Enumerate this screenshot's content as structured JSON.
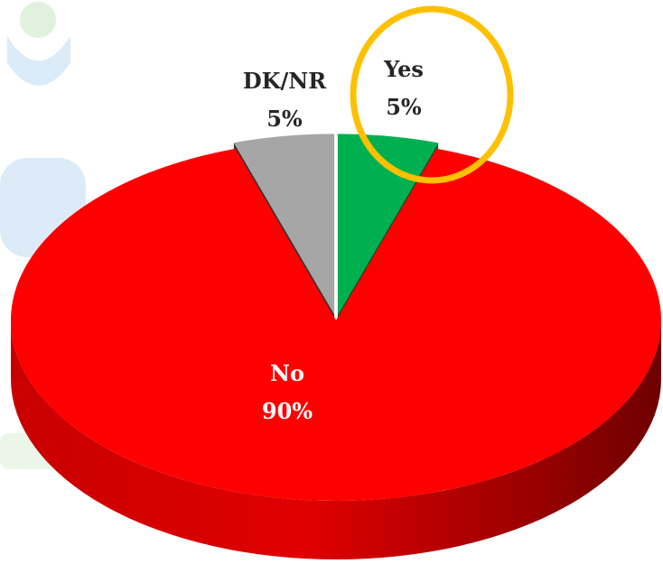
{
  "chart_data": {
    "type": "pie",
    "title": "",
    "slices": [
      {
        "label": "Yes",
        "value": 5,
        "display": "5%",
        "color": "#00b050",
        "highlighted": true
      },
      {
        "label": "No",
        "value": 90,
        "display": "90%",
        "color": "#ff0000"
      },
      {
        "label": "DK/NR",
        "value": 5,
        "display": "5%",
        "color": "#a6a6a6"
      }
    ],
    "style": "3d-exploded",
    "highlight_color": "#ffc000",
    "legend": "none"
  }
}
